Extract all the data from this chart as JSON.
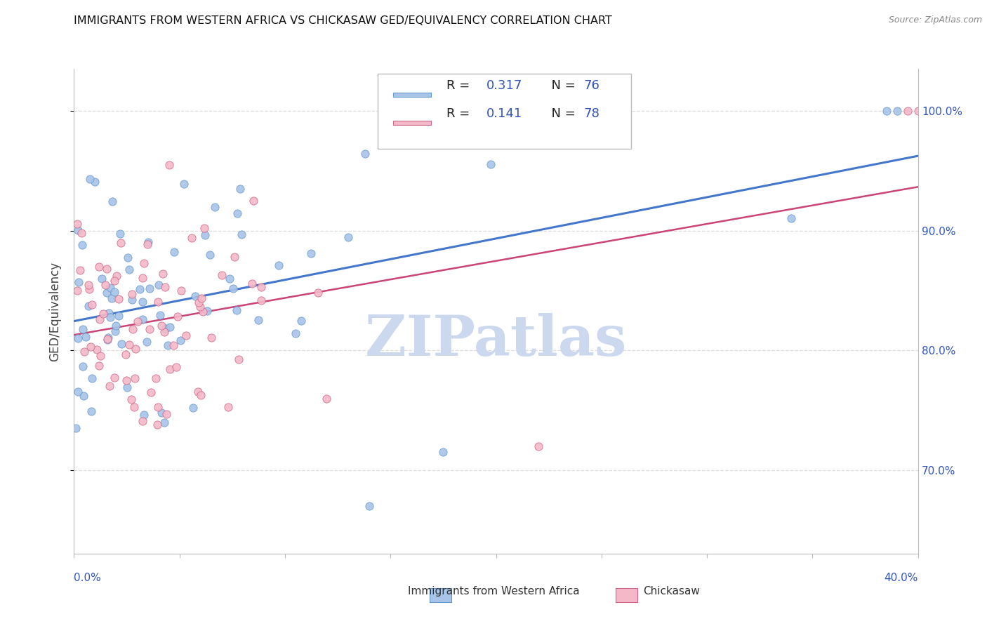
{
  "title": "IMMIGRANTS FROM WESTERN AFRICA VS CHICKASAW GED/EQUIVALENCY CORRELATION CHART",
  "source": "Source: ZipAtlas.com",
  "ylabel": "GED/Equivalency",
  "xmin": 0.0,
  "xmax": 40.0,
  "ymin": 63.0,
  "ymax": 103.5,
  "yticks": [
    70.0,
    80.0,
    90.0,
    100.0
  ],
  "ytick_labels": [
    "70.0%",
    "80.0%",
    "90.0%",
    "100.0%"
  ],
  "series1_name": "Immigrants from Western Africa",
  "series1_color": "#a8c4e8",
  "series1_edge_color": "#6699cc",
  "series1_line_color": "#4477cc",
  "series1_R": "0.317",
  "series1_N": "76",
  "series2_name": "Chickasaw",
  "series2_color": "#f5b8c8",
  "series2_edge_color": "#cc6688",
  "series2_line_color": "#cc4477",
  "series2_R": "0.141",
  "series2_N": "78",
  "legend_text_color": "#3355bb",
  "watermark": "ZIPatlas",
  "watermark_color": "#ccd8ee",
  "grid_color": "#dddddd",
  "title_color": "#111111",
  "source_color": "#888888",
  "axis_label_color": "#3355bb",
  "spine_color": "#bbbbbb"
}
